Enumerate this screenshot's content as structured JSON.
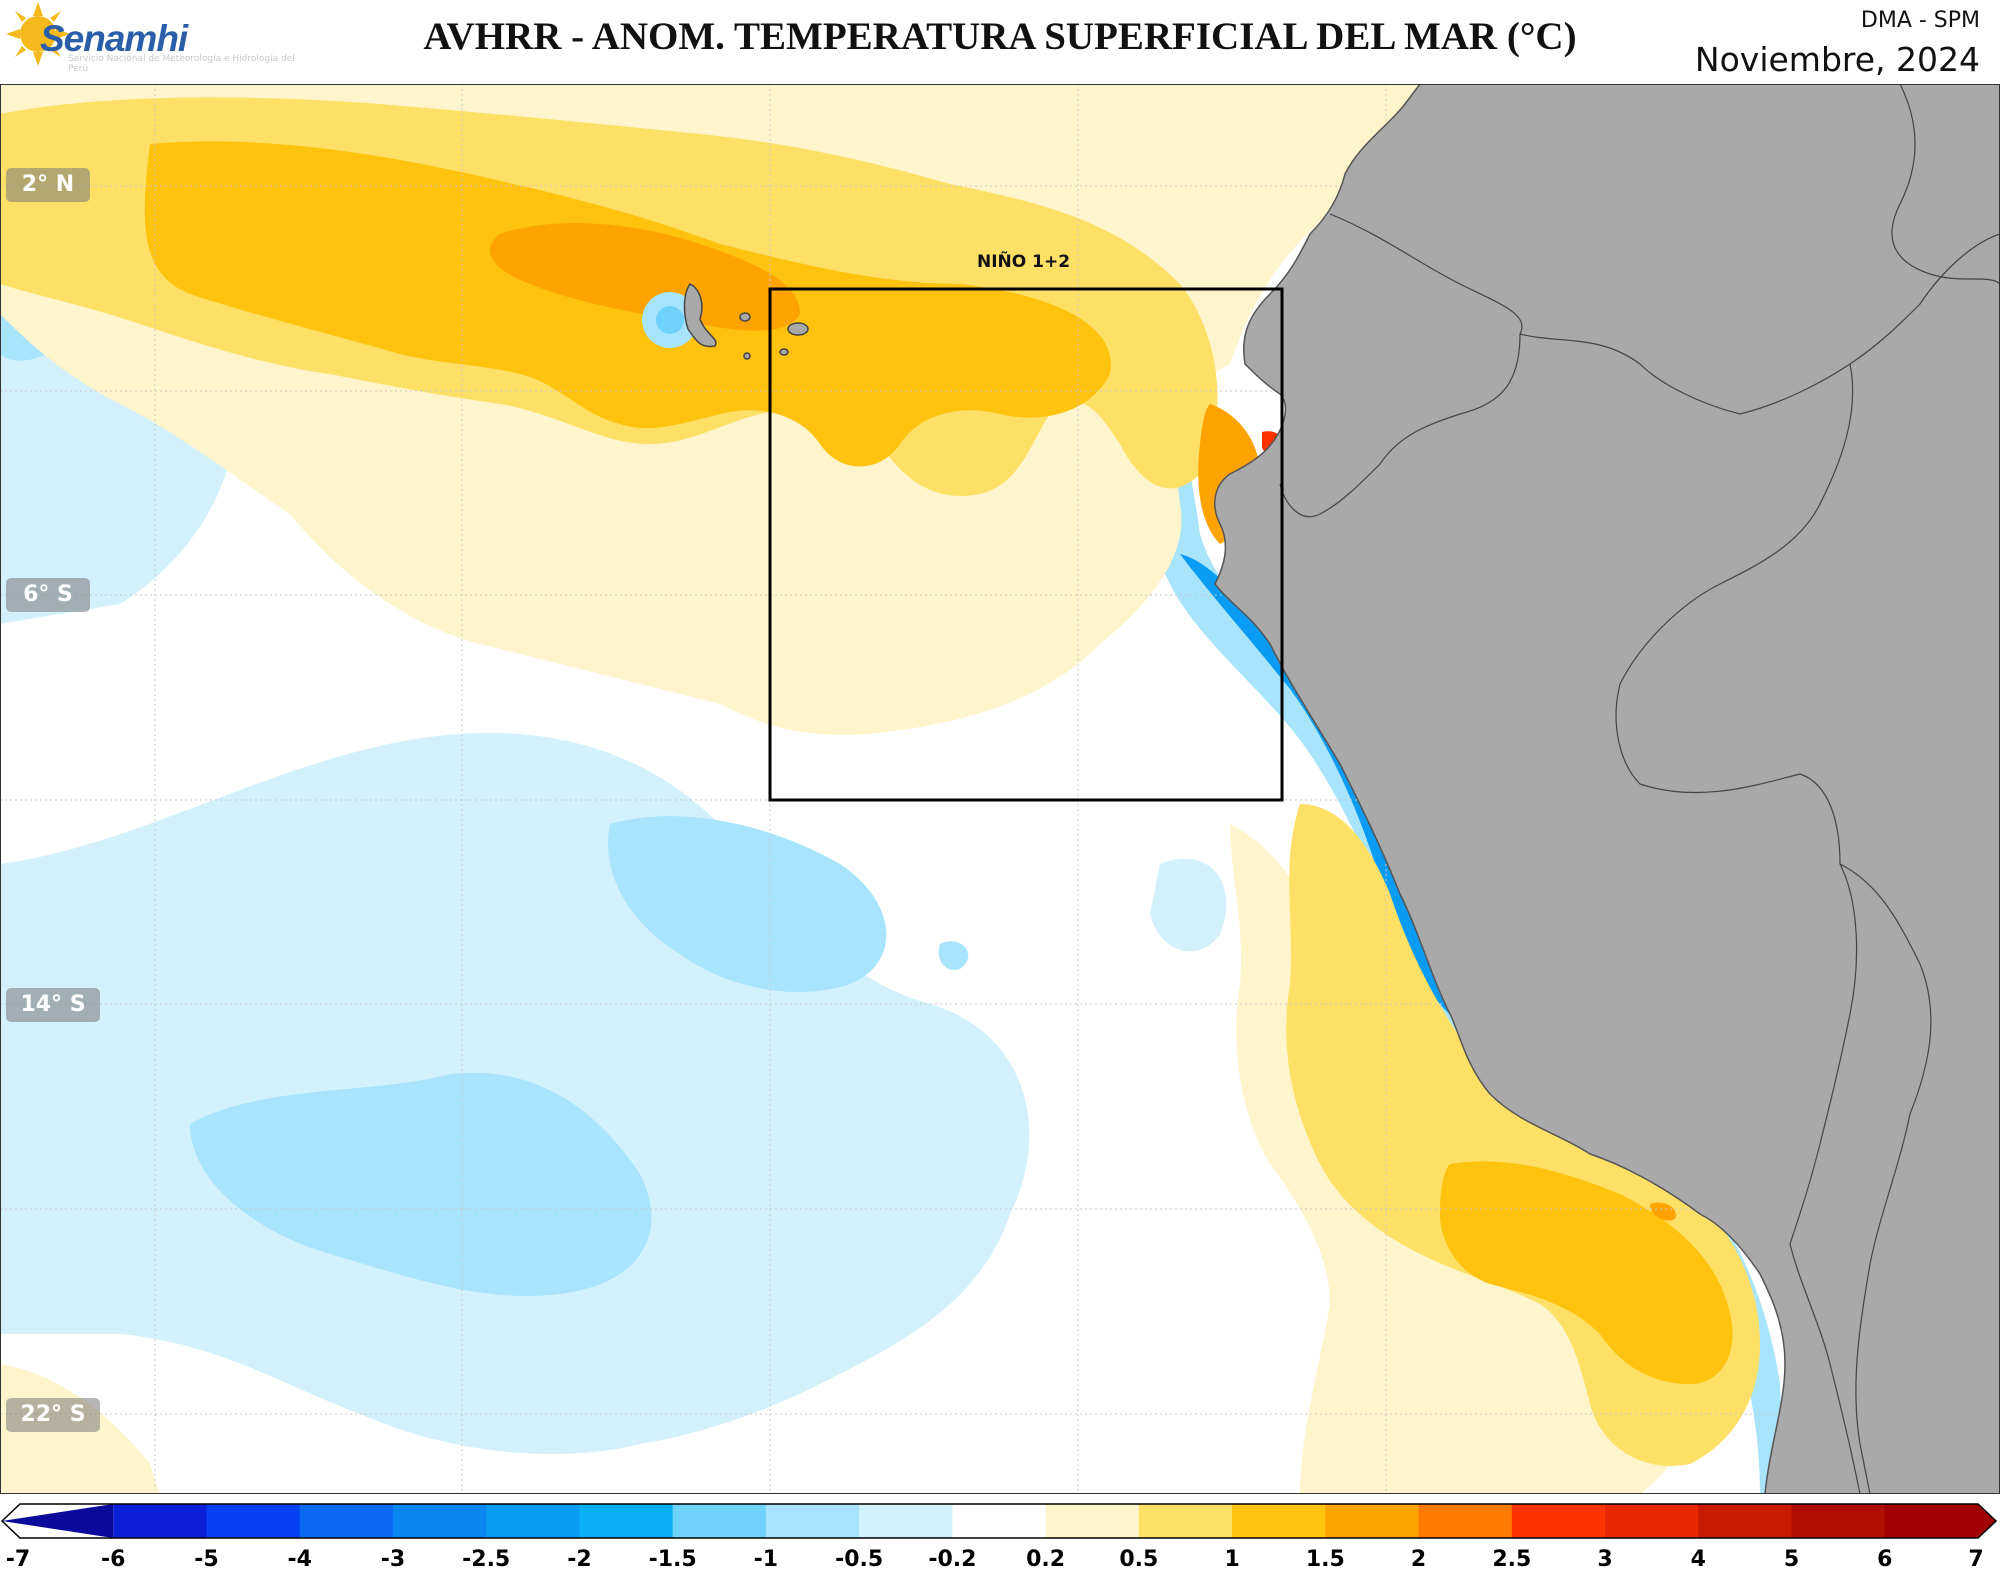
{
  "header": {
    "logo_text": "Senamhi",
    "logo_subtitle": "Servicio Nacional de Meteorología e Hidrología del Perú",
    "title": "AVHRR - ANOM. TEMPERATURA SUPERFICIAL DEL MAR (°C)",
    "organization": "DMA - SPM",
    "date": "Noviembre, 2024"
  },
  "map": {
    "region_label": "NIÑO 1+2",
    "lat_labels": [
      "2° N",
      "6° S",
      "14° S",
      "22° S"
    ],
    "land_color": "#a9a9a9",
    "sea_color": "#ffffff"
  },
  "legend": {
    "levels": [
      "-7",
      "-6",
      "-5",
      "-4",
      "-3",
      "-2.5",
      "-2",
      "-1.5",
      "-1",
      "-0.5",
      "-0.2",
      "0.2",
      "0.5",
      "1",
      "1.5",
      "2",
      "2.5",
      "3",
      "4",
      "5",
      "6",
      "7"
    ],
    "colors": [
      "#0a0a9c",
      "#0a1fd6",
      "#0540f2",
      "#0a6af2",
      "#0a86f2",
      "#0a9cf2",
      "#0ab0f5",
      "#6fd2fb",
      "#a8e4fb",
      "#d2f1fc",
      "#ffffff",
      "#fff5cc",
      "#ffe066",
      "#ffc20e",
      "#ffa300",
      "#ff7a00",
      "#ff3300",
      "#e82800",
      "#c91a00",
      "#b00e00",
      "#a00000"
    ]
  }
}
